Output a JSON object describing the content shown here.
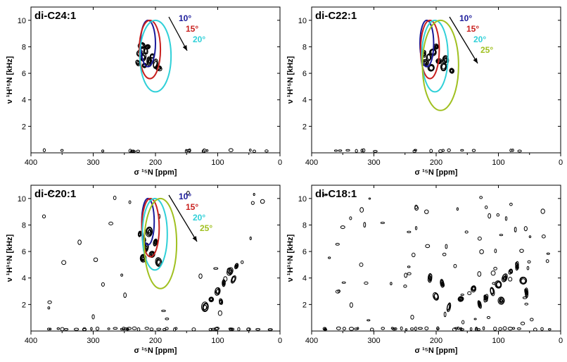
{
  "figure": {
    "colors": {
      "10": "#1a1a9a",
      "15": "#c8201e",
      "20": "#30d0d8",
      "25": "#a0c020",
      "contour": "#000000"
    }
  },
  "chart_data": [
    {
      "type": "contour",
      "panel_label": "di-C24:1",
      "xlabel": "σ ¹⁵N [ppm]",
      "ylabel": "ν ¹H¹⁵N [kHz]",
      "xlim": [
        400,
        0
      ],
      "ylim": [
        0,
        11
      ],
      "xticks": [
        "400",
        "300",
        "200",
        "100",
        "0"
      ],
      "yticks": [
        "2",
        "4",
        "6",
        "8",
        "10"
      ],
      "legend": [
        "10°",
        "15°",
        "20°"
      ],
      "series": [
        {
          "name": "10°",
          "color": "#1a1a9a",
          "center": [
            212,
            8.2
          ],
          "x_halfwidth": 12,
          "y_range": [
            6.5,
            10.0
          ]
        },
        {
          "name": "15°",
          "color": "#c8201e",
          "center": [
            209,
            7.8
          ],
          "x_halfwidth": 17,
          "y_range": [
            5.6,
            10.0
          ]
        },
        {
          "name": "20°",
          "color": "#30d0d8",
          "center": [
            200,
            7.3
          ],
          "x_halfwidth": 25,
          "y_range": [
            4.6,
            10.0
          ]
        }
      ],
      "peaks": [
        {
          "x": 225,
          "y": 7.5
        },
        {
          "x": 220,
          "y": 7.2
        },
        {
          "x": 215,
          "y": 7.7
        },
        {
          "x": 205,
          "y": 7.3
        },
        {
          "x": 228,
          "y": 6.8
        },
        {
          "x": 218,
          "y": 6.6
        },
        {
          "x": 210,
          "y": 6.9
        },
        {
          "x": 200,
          "y": 6.7
        },
        {
          "x": 222,
          "y": 8.1
        },
        {
          "x": 212,
          "y": 8.0
        },
        {
          "x": 195,
          "y": 6.4
        }
      ]
    },
    {
      "type": "contour",
      "panel_label": "di-C22:1",
      "xlabel": "σ ¹⁵N [ppm]",
      "ylabel": "ν ¹H¹⁵N [kHz]",
      "xlim": [
        400,
        0
      ],
      "ylim": [
        0,
        11
      ],
      "xticks": [
        "400",
        "300",
        "200",
        "100",
        "0"
      ],
      "yticks": [
        "2",
        "4",
        "6",
        "8",
        "10"
      ],
      "legend": [
        "10°",
        "15°",
        "20°",
        "25°"
      ],
      "series": [
        {
          "name": "10°",
          "color": "#1a1a9a",
          "center": [
            215,
            8.2
          ],
          "x_halfwidth": 11,
          "y_range": [
            6.5,
            10.0
          ]
        },
        {
          "name": "15°",
          "color": "#c8201e",
          "center": [
            210,
            7.8
          ],
          "x_halfwidth": 15,
          "y_range": [
            5.6,
            10.0
          ]
        },
        {
          "name": "20°",
          "color": "#30d0d8",
          "center": [
            202,
            7.3
          ],
          "x_halfwidth": 21,
          "y_range": [
            4.6,
            10.0
          ]
        },
        {
          "name": "25°",
          "color": "#a0c020",
          "center": [
            193,
            6.6
          ],
          "x_halfwidth": 29,
          "y_range": [
            3.2,
            10.0
          ]
        }
      ],
      "peaks": [
        {
          "x": 220,
          "y": 7.5
        },
        {
          "x": 212,
          "y": 7.2
        },
        {
          "x": 205,
          "y": 7.6
        },
        {
          "x": 195,
          "y": 6.9
        },
        {
          "x": 188,
          "y": 6.5
        },
        {
          "x": 175,
          "y": 6.2
        },
        {
          "x": 208,
          "y": 6.4
        },
        {
          "x": 218,
          "y": 6.8
        },
        {
          "x": 200,
          "y": 8.0
        },
        {
          "x": 185,
          "y": 7.0
        }
      ]
    },
    {
      "type": "contour",
      "panel_label": "di-C20:1",
      "xlabel": "σ ¹⁵N [ppm]",
      "ylabel": "ν ¹H¹⁵N [kHz]",
      "xlim": [
        400,
        0
      ],
      "ylim": [
        0,
        11
      ],
      "xticks": [
        "400",
        "300",
        "200",
        "100",
        "0"
      ],
      "yticks": [
        "2",
        "4",
        "6",
        "8",
        "10"
      ],
      "legend": [
        "10°",
        "15°",
        "20°",
        "25°"
      ],
      "series": [
        {
          "name": "10°",
          "color": "#1a1a9a",
          "center": [
            212,
            8.2
          ],
          "x_halfwidth": 10,
          "y_range": [
            6.5,
            10.0
          ]
        },
        {
          "name": "15°",
          "color": "#c8201e",
          "center": [
            208,
            7.8
          ],
          "x_halfwidth": 14,
          "y_range": [
            5.6,
            10.0
          ]
        },
        {
          "name": "20°",
          "color": "#30d0d8",
          "center": [
            201,
            7.3
          ],
          "x_halfwidth": 20,
          "y_range": [
            4.6,
            10.0
          ]
        },
        {
          "name": "25°",
          "color": "#a0c020",
          "center": [
            192,
            6.6
          ],
          "x_halfwidth": 26,
          "y_range": [
            3.2,
            10.0
          ]
        }
      ],
      "peaks": [
        {
          "x": 225,
          "y": 7.3
        },
        {
          "x": 218,
          "y": 6.9
        },
        {
          "x": 210,
          "y": 7.5
        },
        {
          "x": 200,
          "y": 6.7
        },
        {
          "x": 215,
          "y": 6.3
        },
        {
          "x": 205,
          "y": 5.8
        },
        {
          "x": 220,
          "y": 5.5
        },
        {
          "x": 195,
          "y": 5.2
        },
        {
          "x": 80,
          "y": 4.5
        },
        {
          "x": 75,
          "y": 3.9
        },
        {
          "x": 90,
          "y": 3.6
        },
        {
          "x": 100,
          "y": 3.0
        },
        {
          "x": 110,
          "y": 2.4
        },
        {
          "x": 120,
          "y": 1.8
        },
        {
          "x": 95,
          "y": 2.2
        },
        {
          "x": 70,
          "y": 4.9
        }
      ]
    },
    {
      "type": "contour",
      "panel_label": "di-C18:1",
      "xlabel": "σ ¹⁵N [ppm]",
      "ylabel": "ν ¹H¹⁵N [kHz]",
      "xlim": [
        400,
        0
      ],
      "ylim": [
        0,
        11
      ],
      "xticks": [
        "400",
        "300",
        "200",
        "100",
        "0"
      ],
      "yticks": [
        "2",
        "4",
        "6",
        "8",
        "10"
      ],
      "legend": [],
      "series": [],
      "peaks": [
        {
          "x": 80,
          "y": 4.5
        },
        {
          "x": 70,
          "y": 4.9
        },
        {
          "x": 90,
          "y": 4.0
        },
        {
          "x": 100,
          "y": 3.5
        },
        {
          "x": 110,
          "y": 3.0
        },
        {
          "x": 120,
          "y": 2.5
        },
        {
          "x": 130,
          "y": 2.0
        },
        {
          "x": 95,
          "y": 2.3
        },
        {
          "x": 140,
          "y": 3.2
        },
        {
          "x": 160,
          "y": 2.4
        },
        {
          "x": 180,
          "y": 1.8
        },
        {
          "x": 200,
          "y": 2.6
        },
        {
          "x": 210,
          "y": 4.0
        },
        {
          "x": 190,
          "y": 3.6
        },
        {
          "x": 60,
          "y": 3.8
        },
        {
          "x": 55,
          "y": 2.9
        }
      ]
    }
  ]
}
